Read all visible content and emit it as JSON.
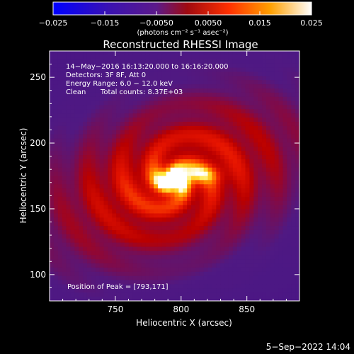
{
  "chart_data": {
    "type": "heatmap",
    "title": "Reconstructed RHESSI Image",
    "xlabel": "Heliocentric X (arcsec)",
    "ylabel": "Heliocentric Y (arcsec)",
    "xlim": [
      700,
      890
    ],
    "ylim": [
      80,
      270
    ],
    "x_ticks": [
      750,
      800,
      850
    ],
    "y_ticks": [
      100,
      150,
      200,
      250
    ],
    "colorbar": {
      "range": [
        -0.025,
        0.025
      ],
      "tick_values": [
        -0.025,
        -0.015,
        -0.005,
        0.005,
        0.015,
        0.025
      ],
      "tick_labels": [
        "−0.025",
        "−0.015",
        "−0.0050",
        "0.0050",
        "0.015",
        "0.025"
      ],
      "unit_label": "(photons cm⁻² s⁻¹ asec⁻²)"
    },
    "annotations": {
      "time_range": "14−May−2016 16:13:20.000 to 16:16:20.000",
      "detectors": "Detectors: 3F 8F, Att 0",
      "energy_range": "Energy Range: 6.0 − 12.0 keV",
      "algorithm": "Clean",
      "total_counts": "Total counts: 8.37E+03",
      "peak_position": "Position of Peak = [793,171]"
    },
    "peak": {
      "x": 793,
      "y": 171
    }
  },
  "footer": {
    "date": "5−Sep−2022 14:04"
  },
  "colors": {
    "background": "#000000",
    "colormap": [
      "#0000ff",
      "#4400aa",
      "#6a1b9a",
      "#b00000",
      "#ff4400",
      "#ffcc00",
      "#ffffff"
    ]
  }
}
